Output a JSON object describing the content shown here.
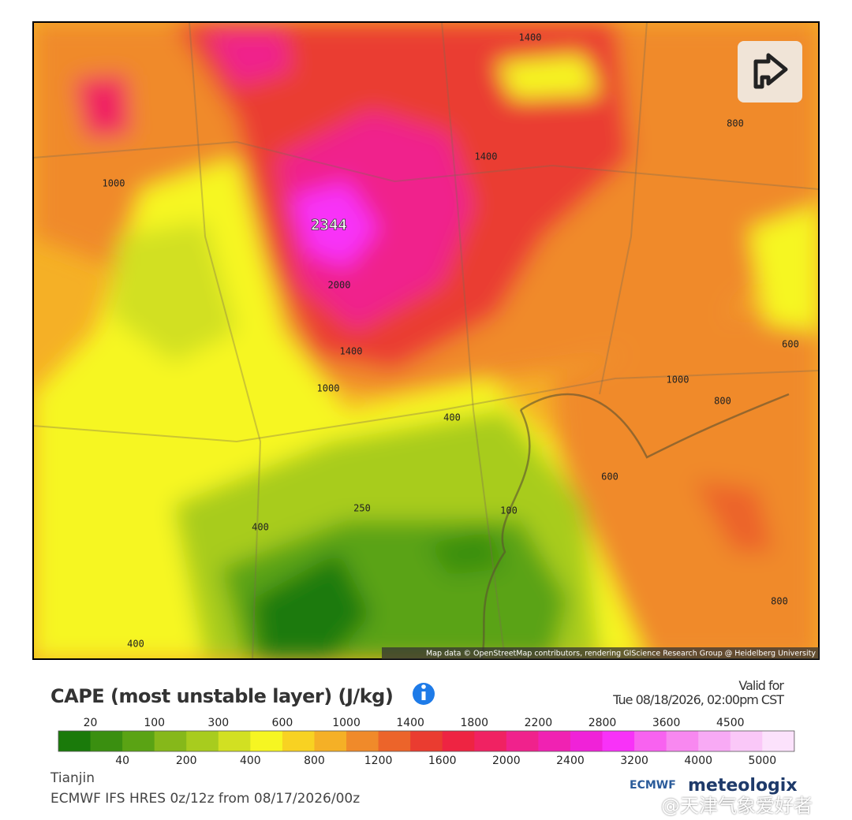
{
  "map": {
    "contour_labels": [
      "1400",
      "1000",
      "1400",
      "800",
      "2344",
      "2000",
      "1400",
      "1000",
      "600",
      "1000",
      "800",
      "400",
      "600",
      "250",
      "100",
      "400",
      "800",
      "400"
    ],
    "attribution": "Map data © OpenStreetMap contributors, rendering GIScience Research Group @ Heidelberg University"
  },
  "legend": {
    "title": "CAPE (most unstable layer) (J/kg)",
    "levels": [
      20,
      40,
      100,
      200,
      300,
      400,
      600,
      800,
      1000,
      1200,
      1400,
      1600,
      1800,
      2000,
      2200,
      2400,
      2800,
      3200,
      3600,
      4000,
      4500,
      5000
    ],
    "colors": [
      "#1a7a0a",
      "#3a8f10",
      "#5aa314",
      "#86b81a",
      "#a8cc1e",
      "#d2e022",
      "#f6f622",
      "#f8d222",
      "#f5b026",
      "#f08a2a",
      "#ec642a",
      "#ea3c30",
      "#ee2442",
      "#f02262",
      "#f0228c",
      "#f022b2",
      "#f022d8",
      "#f832f8",
      "#f862f0",
      "#f888f0",
      "#f8aaf5",
      "#fac8f8",
      "#fce2fc"
    ]
  },
  "valid_label": "Valid for",
  "valid_time": "Tue 08/18/2026, 02:00pm CST",
  "location": "Tianjin",
  "model": "ECMWF IFS HRES 0z/12z from 08/17/2026/00z",
  "logos": [
    "ECMWF",
    "meteologix"
  ],
  "watermark": "@天津气象爱好者"
}
